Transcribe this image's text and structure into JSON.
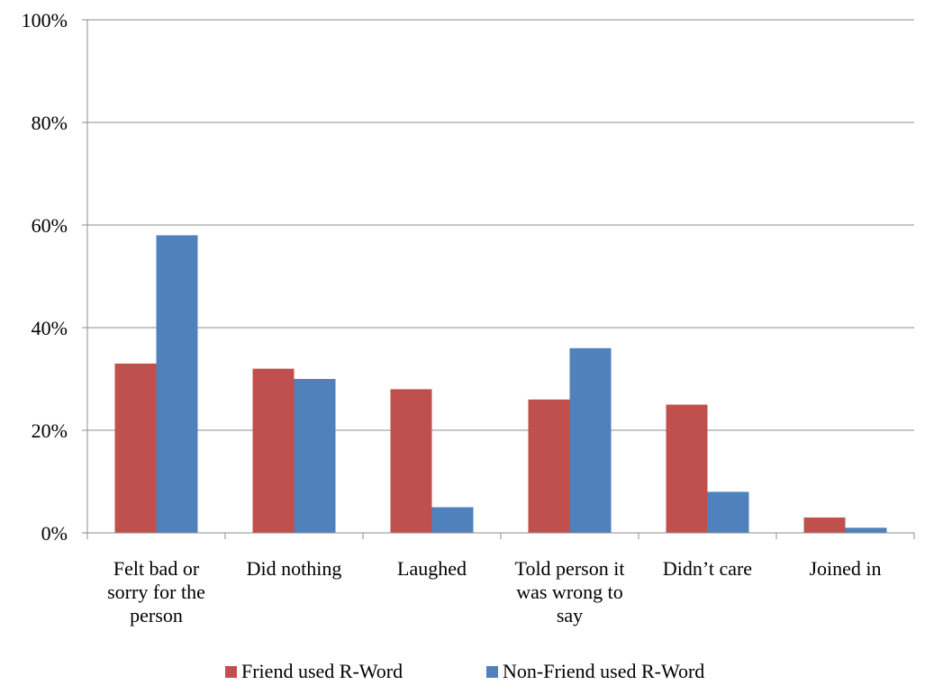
{
  "chart_data": {
    "type": "bar",
    "categories": [
      [
        "Felt bad or",
        "sorry for the",
        "person"
      ],
      [
        "Did nothing"
      ],
      [
        "Laughed"
      ],
      [
        "Told person it",
        "was wrong to",
        "say"
      ],
      [
        "Didn’t care"
      ],
      [
        "Joined in"
      ]
    ],
    "series": [
      {
        "name": "Friend used R-Word",
        "color": "#C0504D",
        "values": [
          33,
          32,
          28,
          26,
          25,
          3
        ]
      },
      {
        "name": "Non-Friend used R-Word",
        "color": "#4F81BD",
        "values": [
          58,
          30,
          5,
          36,
          8,
          1
        ]
      }
    ],
    "ylim": [
      0,
      100
    ],
    "yticks": [
      0,
      20,
      40,
      60,
      80,
      100
    ],
    "ytick_suffix": "%",
    "grid": true,
    "legend_position": "bottom-center"
  }
}
